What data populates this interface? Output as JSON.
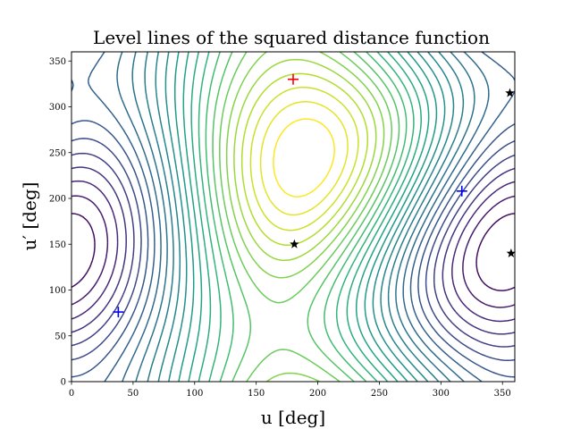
{
  "chart_data": {
    "type": "contour",
    "title": "Level lines of the squared distance function",
    "xlabel": "u [deg]",
    "ylabel": "u′ [deg]",
    "xlim": [
      0,
      360
    ],
    "ylim": [
      0,
      360
    ],
    "x_ticks": [
      0,
      50,
      100,
      150,
      200,
      250,
      300,
      350
    ],
    "y_ticks": [
      0,
      50,
      100,
      150,
      200,
      250,
      300,
      350
    ],
    "grid": false,
    "colormap": "viridis",
    "contour_levels": 26,
    "markers": [
      {
        "type": "plus",
        "color": "#ff0000",
        "x": 180,
        "y": 330
      },
      {
        "type": "plus",
        "color": "#0000ff",
        "x": 38,
        "y": 76
      },
      {
        "type": "plus",
        "color": "#0000ff",
        "x": 317,
        "y": 208
      },
      {
        "type": "star",
        "color": "#000000",
        "x": 181,
        "y": 150
      },
      {
        "type": "star",
        "color": "#000000",
        "x": 356,
        "y": 315
      },
      {
        "type": "star",
        "color": "#000000",
        "x": 357,
        "y": 140
      }
    ]
  }
}
